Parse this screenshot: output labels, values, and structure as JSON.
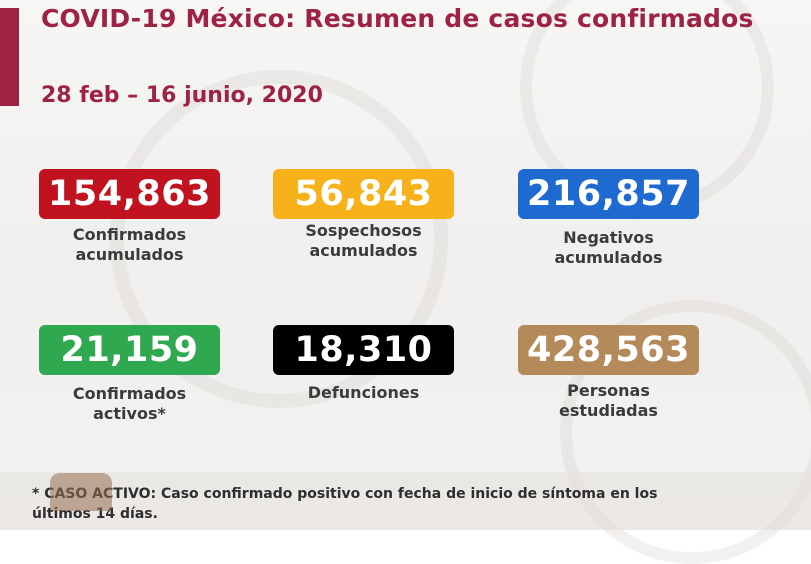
{
  "header": {
    "title": "COVID-19 México: Resumen de casos confirmados",
    "date_range": "28 feb – 16 junio, 2020"
  },
  "stats": [
    {
      "value": "154,863",
      "label_line1": "Confirmados",
      "label_line2": "acumulados",
      "color": "#c1121f"
    },
    {
      "value": "56,843",
      "label_line1": "Sospechosos",
      "label_line2": "acumulados",
      "color": "#f7b21b"
    },
    {
      "value": "216,857",
      "label_line1": "Negativos",
      "label_line2": "acumulados",
      "color": "#1f6ad1"
    },
    {
      "value": "21,159",
      "label_line1": "Confirmados",
      "label_line2": "activos*",
      "color": "#2fa84f"
    },
    {
      "value": "18,310",
      "label_line1": "Defunciones",
      "label_line2": "",
      "color": "#000000"
    },
    {
      "value": "428,563",
      "label_line1": "Personas",
      "label_line2": "estudiadas",
      "color": "#b48a5a"
    }
  ],
  "footnote": {
    "line1": "* CASO ACTIVO: Caso confirmado positivo con fecha de inicio de síntoma en los",
    "line2": "últimos 14 días."
  },
  "colors": {
    "accent": "#9e2241"
  }
}
